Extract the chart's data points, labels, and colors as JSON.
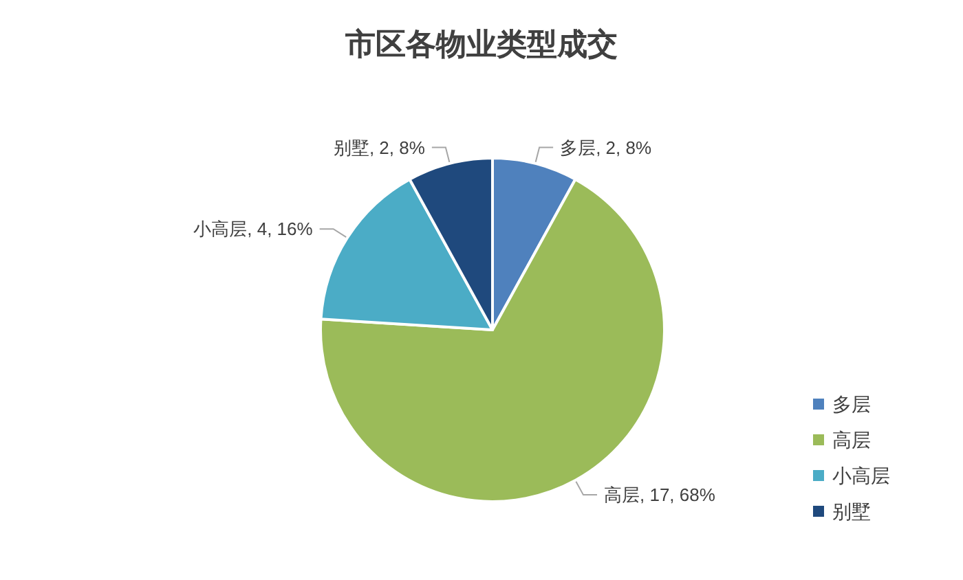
{
  "chart_data": {
    "type": "pie",
    "title": "市区各物业类型成交",
    "categories": [
      "多层",
      "高层",
      "小高层",
      "别墅"
    ],
    "values": [
      2,
      17,
      4,
      2
    ],
    "colors": [
      "#4f81bd",
      "#9bbb59",
      "#4bacc6",
      "#1f497d"
    ],
    "value_labels": [
      "多层, 2, 8%",
      "高层, 17, 68%",
      "小高层, 4, 16%",
      "别墅, 2, 8%"
    ],
    "legend": "bottom right"
  }
}
